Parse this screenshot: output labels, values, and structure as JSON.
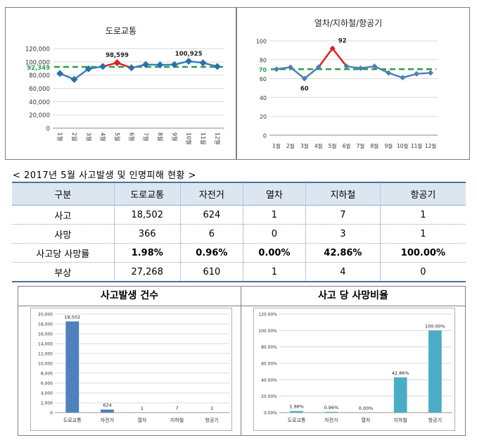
{
  "chart_data": [
    {
      "type": "line",
      "title": "도로교통",
      "x": [
        "1월",
        "2월",
        "3월",
        "4월",
        "5월",
        "6월",
        "7월",
        "8월",
        "9월",
        "10월",
        "11월",
        "12월"
      ],
      "values": [
        82500,
        73500,
        89500,
        93000,
        98599,
        91000,
        96000,
        95500,
        95800,
        100925,
        98500,
        93000
      ],
      "reference_line": 92349,
      "reference_label": "92,349",
      "labels": [
        {
          "index": 4,
          "text": "98,599"
        },
        {
          "index": 9,
          "text": "100,925"
        }
      ],
      "highlight_index": 4,
      "ylim": [
        0,
        120000
      ],
      "yticks": [
        "0",
        "20,000",
        "40,000",
        "60,000",
        "80,000",
        "100,000",
        "120,000"
      ],
      "grid": true,
      "colors": {
        "line": "#3f7fbf",
        "marker": "#2a6fae",
        "highlight": "#e02020",
        "reference": "#2e9e48"
      }
    },
    {
      "type": "line",
      "title": "열차/지하철/항공기",
      "x": [
        "1월",
        "2월",
        "3월",
        "4월",
        "5월",
        "6월",
        "7월",
        "8월",
        "9월",
        "10월",
        "11월",
        "12월"
      ],
      "values": [
        70,
        72,
        60,
        72,
        92,
        73,
        71,
        73,
        66,
        61,
        65,
        66
      ],
      "reference_line": 70,
      "reference_label": "70",
      "labels": [
        {
          "index": 2,
          "text": "60"
        },
        {
          "index": 4,
          "text": "92"
        }
      ],
      "highlight_index": 4,
      "ylim": [
        0,
        100
      ],
      "yticks": [
        "0",
        "20",
        "40",
        "60",
        "80",
        "100"
      ],
      "grid": true,
      "colors": {
        "line": "#4f7fb5",
        "marker": "#4f7fb5",
        "highlight": "#e02020",
        "reference": "#2e9e48"
      }
    },
    {
      "type": "table",
      "title": "< 2017년 5월 사고발생 및 인명피해 현황 >",
      "columns": [
        "구분",
        "도로교통",
        "자전거",
        "열차",
        "지하철",
        "항공기"
      ],
      "rows": [
        [
          "사고",
          "18,502",
          "624",
          "1",
          "7",
          "1"
        ],
        [
          "사망",
          "366",
          "6",
          "0",
          "3",
          "1"
        ],
        [
          "사고당 사망률",
          "1.98%",
          "0.96%",
          "0.00%",
          "42.86%",
          "100.00%"
        ],
        [
          "부상",
          "27,268",
          "610",
          "1",
          "4",
          "0"
        ]
      ]
    },
    {
      "type": "bar",
      "title": "사고발생 건수",
      "categories": [
        "도로교통",
        "자전거",
        "열차",
        "지하철",
        "항공기"
      ],
      "values": [
        18502,
        624,
        1,
        7,
        1
      ],
      "data_labels": [
        "18,502",
        "624",
        "1",
        "7",
        "1"
      ],
      "ylim": [
        0,
        20000
      ],
      "yticks": [
        "0",
        "2,000",
        "4,000",
        "6,000",
        "8,000",
        "10,000",
        "12,000",
        "14,000",
        "16,000",
        "18,000",
        "20,000"
      ],
      "grid": true,
      "colors": {
        "bar": "#4f81bd"
      }
    },
    {
      "type": "bar",
      "title": "사고 당 사망비율",
      "categories": [
        "도로교통",
        "자전거",
        "열차",
        "지하철",
        "항공기"
      ],
      "values": [
        1.98,
        0.96,
        0.0,
        42.86,
        100.0
      ],
      "data_labels": [
        "1.98%",
        "0.96%",
        "0.00%",
        "42.86%",
        "100.00%"
      ],
      "ylim": [
        0,
        120
      ],
      "yticks": [
        "0.00%",
        "20.00%",
        "40.00%",
        "60.00%",
        "80.00%",
        "100.00%",
        "120.00%"
      ],
      "grid": true,
      "colors": {
        "bar": "#4bacc6"
      }
    }
  ]
}
